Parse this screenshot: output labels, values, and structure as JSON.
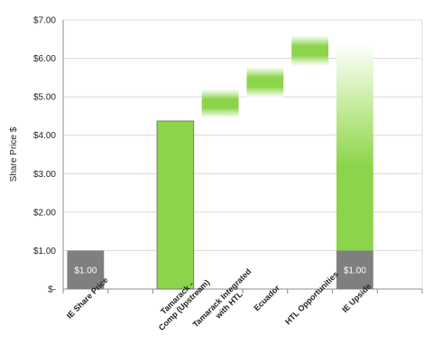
{
  "chart_data": {
    "type": "bar",
    "subtype": "waterfall",
    "ylabel": "Share Price $",
    "ylim": [
      0,
      7
    ],
    "yticks": [
      {
        "value": 0,
        "label": "$-"
      },
      {
        "value": 1,
        "label": "$1.00"
      },
      {
        "value": 2,
        "label": "$2.00"
      },
      {
        "value": 3,
        "label": "$3.00"
      },
      {
        "value": 4,
        "label": "$4.00"
      },
      {
        "value": 5,
        "label": "$5.00"
      },
      {
        "value": 6,
        "label": "$6.00"
      },
      {
        "value": 7,
        "label": "$7.00"
      }
    ],
    "categories": [
      "IE Share Price",
      "",
      "Tamarack - Comp (Upstream)",
      "Tamarack Integrated with HTL",
      "Ecuador",
      "HTL Opportunities",
      "IE Upside",
      ""
    ],
    "bars": [
      {
        "category_index": 0,
        "base": 0,
        "top": 1.0,
        "style": "solid-gray",
        "label": "$1.00"
      },
      {
        "category_index": 2,
        "base": 0,
        "top": 4.37,
        "style": "solid-green"
      },
      {
        "category_index": 3,
        "base": 4.45,
        "top": 5.2,
        "style": "fade-green"
      },
      {
        "category_index": 4,
        "base": 4.98,
        "top": 5.78,
        "style": "fade-green"
      },
      {
        "category_index": 5,
        "base": 5.8,
        "top": 6.6,
        "style": "fade-green"
      },
      {
        "category_index": 6,
        "base": 1.0,
        "top": 6.4,
        "style": "gradient-green"
      },
      {
        "category_index": 6,
        "base": 0,
        "top": 1.0,
        "style": "solid-gray",
        "label": "$1.00"
      }
    ],
    "grid": true,
    "colors": {
      "gray": "#7f7f7f",
      "green": "#8cd44a",
      "green_light": "#c6ec9f",
      "grid": "#d9d9d9",
      "axis": "#8c8c8c"
    }
  }
}
